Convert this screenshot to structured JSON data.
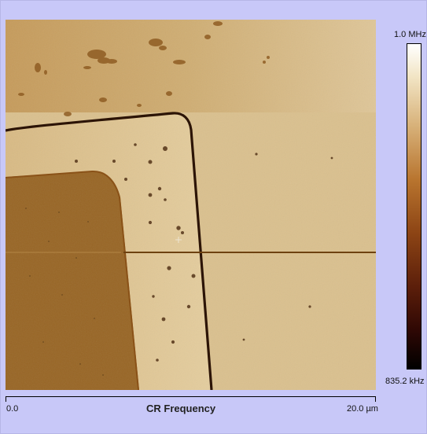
{
  "image": {
    "title": "CR Frequency",
    "x_axis": {
      "min_label": "0.0",
      "max_label": "20.0 µm"
    },
    "colorbar": {
      "max_label": "1.0 MHz",
      "min_label": "835.2 kHz"
    }
  }
}
